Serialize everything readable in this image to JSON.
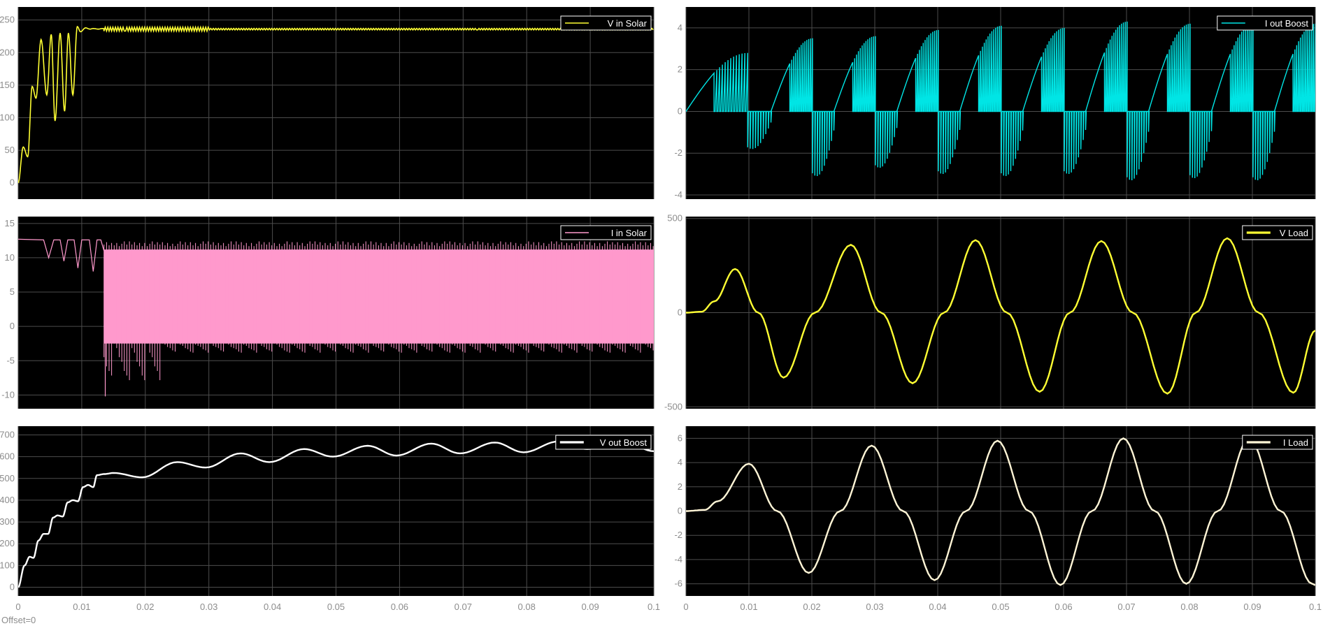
{
  "window": {
    "offset_label": "Offset=0"
  },
  "style": {
    "background": "#000000",
    "grid": "#4d4d4d",
    "tick_color": "#8c8c8c",
    "page": "#ffffff"
  },
  "chart_data": [
    {
      "id": "v-in-solar",
      "type": "line",
      "legend": "V in Solar",
      "legend_position": "top-right",
      "color": "#ffff33",
      "grid": true,
      "xlim": [
        0,
        0.1
      ],
      "ylim": [
        -25,
        270
      ],
      "xticks": [
        0,
        0.01,
        0.02,
        0.03,
        0.04,
        0.05,
        0.06,
        0.07,
        0.08,
        0.09,
        0.1
      ],
      "yticks": [
        0,
        50,
        100,
        150,
        200,
        250
      ],
      "ytick_labels": [
        "0",
        "50",
        "100",
        "150",
        "200",
        "250"
      ],
      "series": [
        {
          "name": "V in Solar",
          "x": [
            0,
            0.0008,
            0.0015,
            0.0022,
            0.0028,
            0.0036,
            0.0045,
            0.0052,
            0.0058,
            0.0066,
            0.0073,
            0.0079,
            0.0086,
            0.0093,
            0.0098,
            0.0106,
            0.0113,
            0.0118,
            0.0126,
            0.0133,
            0.0138,
            0.0145,
            0.02,
            0.03,
            0.04,
            0.05,
            0.06,
            0.07,
            0.08,
            0.09,
            0.1
          ],
          "y": [
            0,
            55,
            40,
            148,
            130,
            220,
            135,
            228,
            95,
            230,
            110,
            230,
            135,
            240,
            232,
            238,
            236,
            237,
            236,
            237,
            236,
            236,
            236,
            236,
            236,
            236,
            236,
            236,
            236,
            236,
            236
          ]
        }
      ],
      "ripple": {
        "from": 0.0135,
        "amplitude": 3,
        "period": 0.0004
      }
    },
    {
      "id": "i-out-boost",
      "type": "line",
      "legend": "I out Boost",
      "legend_position": "top-right",
      "color": "#00e5e5",
      "grid": true,
      "xlim": [
        0,
        0.1
      ],
      "ylim": [
        -4.2,
        5.0
      ],
      "xticks": [
        0,
        0.01,
        0.02,
        0.03,
        0.04,
        0.05,
        0.06,
        0.07,
        0.08,
        0.09,
        0.1
      ],
      "yticks": [
        -4,
        -2,
        0,
        2,
        4
      ],
      "ytick_labels": [
        "-4",
        "-2",
        "0",
        "2",
        "4"
      ],
      "cycles": [
        {
          "start": 0.0,
          "end": 0.0098,
          "peak": 2.8,
          "neg_start": 0.0098,
          "neg_end": 0.0135,
          "neg_peak": -1.8
        },
        {
          "start": 0.0135,
          "end": 0.0201,
          "peak": 3.5,
          "neg_start": 0.0201,
          "neg_end": 0.0235,
          "neg_peak": -3.1
        },
        {
          "start": 0.0235,
          "end": 0.0301,
          "peak": 3.6,
          "neg_start": 0.0301,
          "neg_end": 0.0335,
          "neg_peak": -2.7
        },
        {
          "start": 0.0335,
          "end": 0.0401,
          "peak": 3.9,
          "neg_start": 0.0401,
          "neg_end": 0.0435,
          "neg_peak": -3.0
        },
        {
          "start": 0.0435,
          "end": 0.0501,
          "peak": 4.1,
          "neg_start": 0.0501,
          "neg_end": 0.0535,
          "neg_peak": -3.1
        },
        {
          "start": 0.0535,
          "end": 0.0601,
          "peak": 4.0,
          "neg_start": 0.0601,
          "neg_end": 0.0635,
          "neg_peak": -3.0
        },
        {
          "start": 0.0635,
          "end": 0.0701,
          "peak": 4.3,
          "neg_start": 0.0701,
          "neg_end": 0.0735,
          "neg_peak": -3.3
        },
        {
          "start": 0.0735,
          "end": 0.0801,
          "peak": 4.2,
          "neg_start": 0.0801,
          "neg_end": 0.0835,
          "neg_peak": -3.2
        },
        {
          "start": 0.0835,
          "end": 0.0901,
          "peak": 4.2,
          "neg_start": 0.0901,
          "neg_end": 0.0935,
          "neg_peak": -3.3
        },
        {
          "start": 0.0935,
          "end": 0.1,
          "peak": 4.2,
          "neg_start": 0.1,
          "neg_end": 0.1,
          "neg_peak": 0
        }
      ]
    },
    {
      "id": "i-in-solar",
      "type": "line",
      "legend": "I in Solar",
      "legend_position": "top-right",
      "color": "#ff99cc",
      "grid": true,
      "xlim": [
        0,
        0.1
      ],
      "ylim": [
        -12,
        16
      ],
      "xticks": [
        0,
        0.01,
        0.02,
        0.03,
        0.04,
        0.05,
        0.06,
        0.07,
        0.08,
        0.09,
        0.1
      ],
      "yticks": [
        -10,
        -5,
        0,
        5,
        10,
        15
      ],
      "ytick_labels": [
        "-10",
        "-5",
        "0",
        "5",
        "10",
        "15"
      ],
      "start_x": [
        0,
        0.004,
        0.0048,
        0.0056,
        0.0066,
        0.0072,
        0.0078,
        0.0088,
        0.0094,
        0.01,
        0.0112,
        0.0118,
        0.0124,
        0.013,
        0.0135
      ],
      "start_y": [
        12.7,
        12.6,
        10.0,
        12.6,
        12.6,
        9.5,
        12.6,
        12.6,
        8.5,
        12.6,
        12.6,
        8.0,
        12.6,
        12.6,
        11
      ],
      "band": {
        "from": 0.0135,
        "top": 11.2,
        "bottom": -2.5,
        "lower_spikes_min": -4.5
      }
    },
    {
      "id": "v-load",
      "type": "line",
      "legend": "V Load",
      "legend_position": "top-right",
      "color": "#ffff33",
      "grid": true,
      "xlim": [
        0,
        0.1
      ],
      "ylim": [
        -510,
        510
      ],
      "xticks": [
        0,
        0.01,
        0.02,
        0.03,
        0.04,
        0.05,
        0.06,
        0.07,
        0.08,
        0.09,
        0.1
      ],
      "yticks": [
        -500,
        0,
        500
      ],
      "ytick_labels": [
        "-500",
        "0",
        "500"
      ],
      "series": [
        {
          "name": "V Load",
          "x": [
            0,
            0.0025,
            0.0045,
            0.0078,
            0.0115,
            0.0155,
            0.0205,
            0.0262,
            0.031,
            0.036,
            0.041,
            0.046,
            0.051,
            0.0562,
            0.061,
            0.066,
            0.071,
            0.0765,
            0.081,
            0.086,
            0.091,
            0.0965,
            0.1
          ],
          "y": [
            0,
            5,
            60,
            232,
            0,
            -345,
            0,
            360,
            0,
            -375,
            0,
            385,
            0,
            -420,
            0,
            380,
            0,
            -430,
            0,
            395,
            0,
            -425,
            -95
          ]
        }
      ]
    },
    {
      "id": "v-out-boost",
      "type": "line",
      "legend": "V out Boost",
      "legend_position": "top-right",
      "color": "#ffffff",
      "grid": true,
      "xlim": [
        0,
        0.1
      ],
      "ylim": [
        -40,
        740
      ],
      "xticks": [
        0,
        0.01,
        0.02,
        0.03,
        0.04,
        0.05,
        0.06,
        0.07,
        0.08,
        0.09,
        0.1
      ],
      "xtick_labels": [
        "0",
        "0.01",
        "0.02",
        "0.03",
        "0.04",
        "0.05",
        "0.06",
        "0.07",
        "0.08",
        "0.09",
        "0.1"
      ],
      "yticks": [
        0,
        100,
        200,
        300,
        400,
        500,
        600,
        700
      ],
      "ytick_labels": [
        "0",
        "100",
        "200",
        "300",
        "400",
        "500",
        "600",
        "700"
      ],
      "series": [
        {
          "name": "V out Boost",
          "x": [
            0,
            0.001,
            0.0018,
            0.0024,
            0.0032,
            0.004,
            0.0047,
            0.0055,
            0.0062,
            0.007,
            0.0078,
            0.0086,
            0.0094,
            0.0102,
            0.011,
            0.0118,
            0.0124,
            0.0135,
            0.015,
            0.0195,
            0.025,
            0.0295,
            0.035,
            0.0395,
            0.045,
            0.0495,
            0.055,
            0.0595,
            0.065,
            0.0695,
            0.075,
            0.0795,
            0.085,
            0.0895,
            0.095,
            0.1
          ],
          "y": [
            0,
            100,
            140,
            135,
            215,
            245,
            245,
            320,
            330,
            325,
            390,
            400,
            395,
            460,
            470,
            460,
            515,
            520,
            525,
            505,
            575,
            550,
            615,
            575,
            635,
            600,
            650,
            605,
            660,
            615,
            665,
            620,
            670,
            635,
            675,
            625
          ]
        }
      ]
    },
    {
      "id": "i-load",
      "type": "line",
      "legend": "I Load",
      "legend_position": "top-right",
      "color": "#fff5d6",
      "grid": true,
      "xlim": [
        0,
        0.1
      ],
      "ylim": [
        -7,
        7
      ],
      "xticks": [
        0,
        0.01,
        0.02,
        0.03,
        0.04,
        0.05,
        0.06,
        0.07,
        0.08,
        0.09,
        0.1
      ],
      "xtick_labels": [
        "0",
        "0.01",
        "0.02",
        "0.03",
        "0.04",
        "0.05",
        "0.06",
        "0.07",
        "0.08",
        "0.09",
        "0.1"
      ],
      "yticks": [
        -6,
        -4,
        -2,
        0,
        2,
        4,
        6
      ],
      "ytick_labels": [
        "-6",
        "-4",
        "-2",
        "0",
        "2",
        "4",
        "6"
      ],
      "series": [
        {
          "name": "I Load",
          "x": [
            0,
            0.003,
            0.005,
            0.01,
            0.0145,
            0.0195,
            0.0245,
            0.0295,
            0.0345,
            0.0395,
            0.0445,
            0.0495,
            0.0545,
            0.0595,
            0.0645,
            0.0695,
            0.0745,
            0.0795,
            0.0845,
            0.0895,
            0.0945,
            0.0995,
            0.1
          ],
          "y": [
            0,
            0.1,
            0.8,
            3.9,
            0,
            -5.1,
            0,
            5.4,
            0,
            -5.7,
            0,
            5.8,
            0,
            -6.1,
            0,
            6.0,
            0,
            -6.0,
            0,
            6.0,
            0,
            -6.0,
            -6.1
          ]
        }
      ]
    }
  ]
}
